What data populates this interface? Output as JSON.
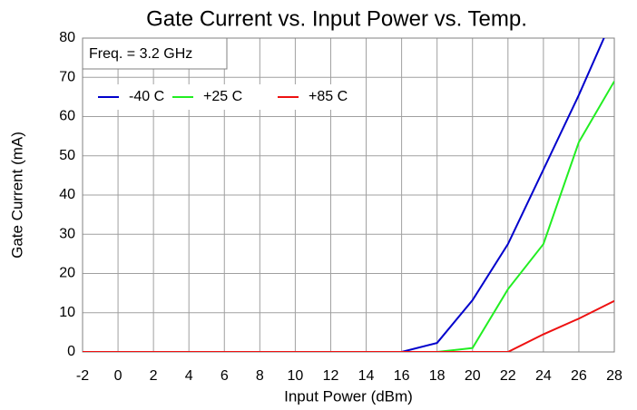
{
  "chart_data": {
    "type": "line",
    "title": "Gate Current vs. Input Power vs. Temp.",
    "x_label": "Input Power (dBm)",
    "y_label": "Gate Current (mA)",
    "annotation": "Freq. = 3.2 GHz",
    "x": [
      -2,
      0,
      2,
      4,
      6,
      8,
      10,
      12,
      14,
      16,
      18,
      20,
      22,
      24,
      26,
      28
    ],
    "series": [
      {
        "name": "-40 C",
        "color": "#0000cc",
        "values": [
          0,
          0,
          0,
          0,
          0,
          0,
          0,
          0,
          0,
          0,
          2.3,
          13.2,
          27.5,
          46.5,
          65.5,
          86
        ]
      },
      {
        "name": "+25 C",
        "color": "#22ee22",
        "values": [
          0,
          0,
          0,
          0,
          0,
          0,
          0,
          0,
          0,
          0,
          0,
          1,
          16,
          27.5,
          53.5,
          69
        ]
      },
      {
        "name": "+85 C",
        "color": "#ee1111",
        "values": [
          0,
          0,
          0,
          0,
          0,
          0,
          0,
          0,
          0,
          0,
          0,
          0,
          0,
          4.5,
          8.5,
          13
        ]
      }
    ],
    "xlim": [
      -2,
      28
    ],
    "xticks": [
      -2,
      0,
      2,
      4,
      6,
      8,
      10,
      12,
      14,
      16,
      18,
      20,
      22,
      24,
      26,
      28
    ],
    "ylim": [
      0,
      80
    ],
    "yticks": [
      0,
      10,
      20,
      30,
      40,
      50,
      60,
      70,
      80
    ],
    "grid": true,
    "legend": "top-left"
  }
}
